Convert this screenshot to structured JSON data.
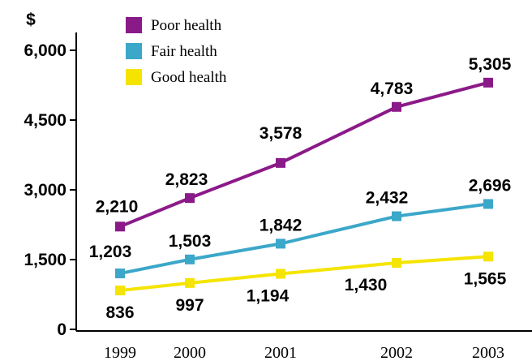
{
  "chart_data": {
    "type": "line",
    "title": "",
    "xlabel": "",
    "ylabel": "$",
    "categories": [
      "1999",
      "2000",
      "2001",
      "2002",
      "2003"
    ],
    "ylim": [
      0,
      6000
    ],
    "yticks": [
      0,
      1500,
      3000,
      4500,
      6000
    ],
    "ytick_labels": [
      "0",
      "1,500",
      "3,000",
      "4,500",
      "6,000"
    ],
    "grid": false,
    "legend": "top-left",
    "series": [
      {
        "name": "Poor health",
        "color": "#8B1A89",
        "values": [
          2210,
          2823,
          3578,
          4783,
          5305
        ],
        "labels": [
          "2,210",
          "2,823",
          "3,578",
          "4,783",
          "5,305"
        ]
      },
      {
        "name": "Fair health",
        "color": "#3BA7C9",
        "values": [
          1203,
          1503,
          1842,
          2432,
          2696
        ],
        "labels": [
          "1,203",
          "1,503",
          "1,842",
          "2,432",
          "2,696"
        ]
      },
      {
        "name": "Good health",
        "color": "#F5E400",
        "values": [
          836,
          997,
          1194,
          1430,
          1565
        ],
        "labels": [
          "836",
          "997",
          "1,194",
          "1,430",
          "1,565"
        ]
      }
    ]
  }
}
